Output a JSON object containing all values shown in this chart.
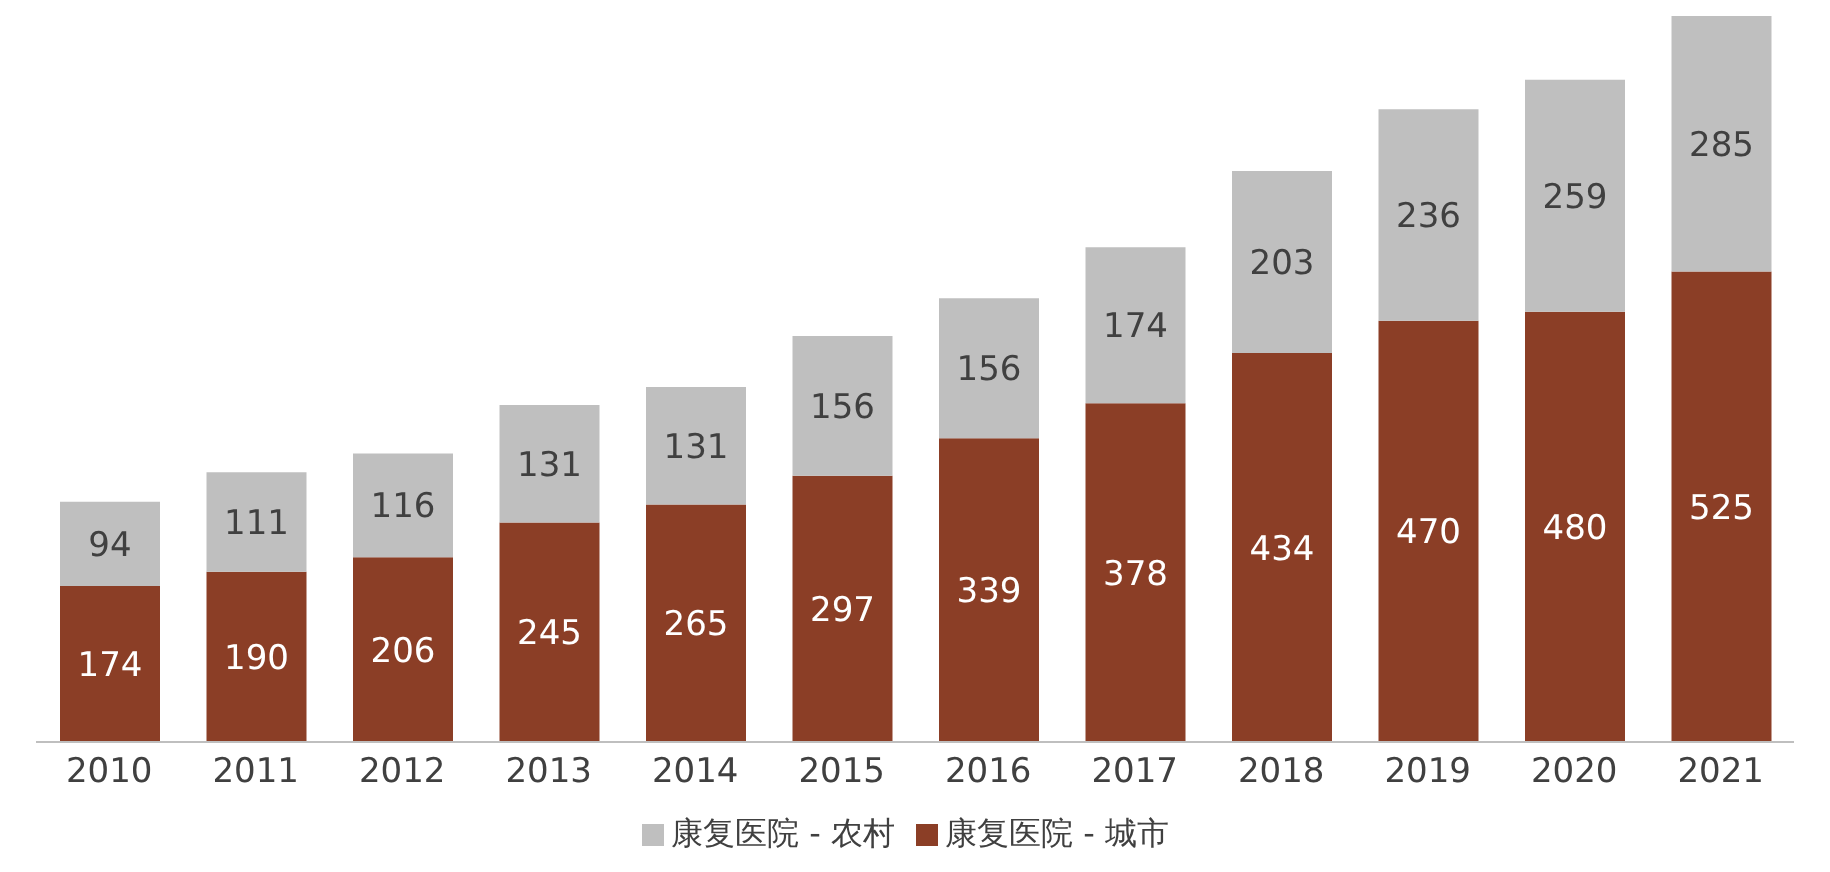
{
  "chart_data": {
    "type": "bar",
    "stacked": true,
    "data_labels": true,
    "legend": "bottom",
    "grid": false,
    "categories": [
      "2010",
      "2011",
      "2012",
      "2013",
      "2014",
      "2015",
      "2016",
      "2017",
      "2018",
      "2019",
      "2020",
      "2021"
    ],
    "series": [
      {
        "name": "康复医院 - 城市",
        "color": "#8b3e26",
        "values": [
          174,
          190,
          206,
          245,
          265,
          297,
          339,
          378,
          434,
          470,
          480,
          525
        ]
      },
      {
        "name": "康复医院 - 农村",
        "color": "#bfbfbf",
        "values": [
          94,
          111,
          116,
          131,
          131,
          156,
          156,
          174,
          203,
          236,
          259,
          285
        ]
      }
    ]
  }
}
